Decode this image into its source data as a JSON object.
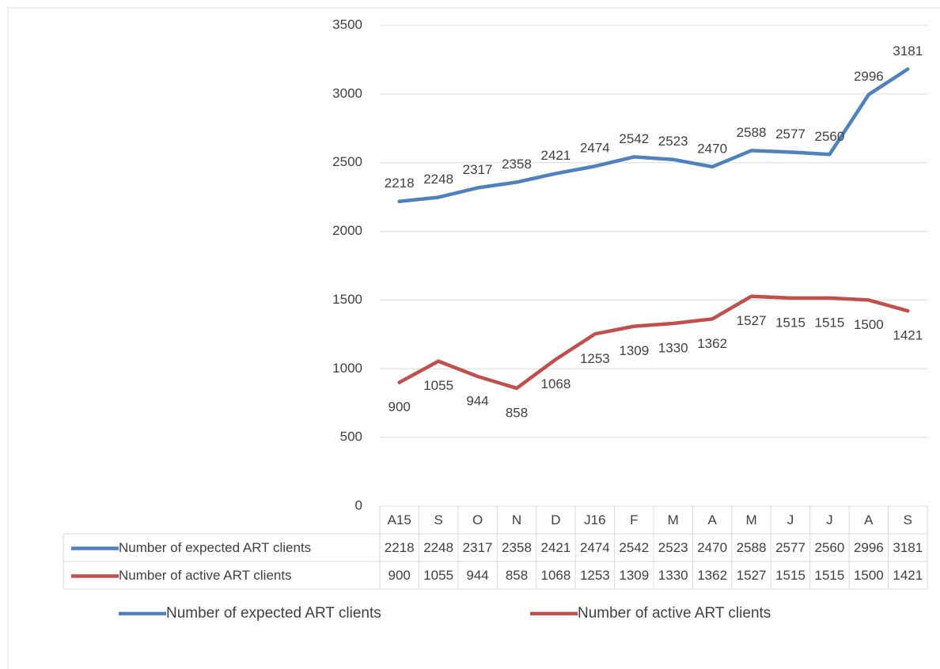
{
  "chart_data": {
    "type": "line",
    "categories": [
      "A15",
      "S",
      "O",
      "N",
      "D",
      "J16",
      "F",
      "M",
      "A",
      "M",
      "J",
      "J",
      "A",
      "S"
    ],
    "series": [
      {
        "name": "Number of expected  ART clients",
        "color": "#4f81bd",
        "values": [
          2218,
          2248,
          2317,
          2358,
          2421,
          2474,
          2542,
          2523,
          2470,
          2588,
          2577,
          2560,
          2996,
          3181
        ]
      },
      {
        "name": "Number of active  ART clients",
        "color": "#c0504d",
        "values": [
          900,
          1055,
          944,
          858,
          1068,
          1253,
          1309,
          1330,
          1362,
          1527,
          1515,
          1515,
          1500,
          1421
        ]
      }
    ],
    "ylim": [
      0,
      3500
    ],
    "yticks": [
      0,
      500,
      1000,
      1500,
      2000,
      2500,
      3000,
      3500
    ],
    "grid": true,
    "data_labels": true,
    "data_table": true,
    "legend": "bottom"
  }
}
